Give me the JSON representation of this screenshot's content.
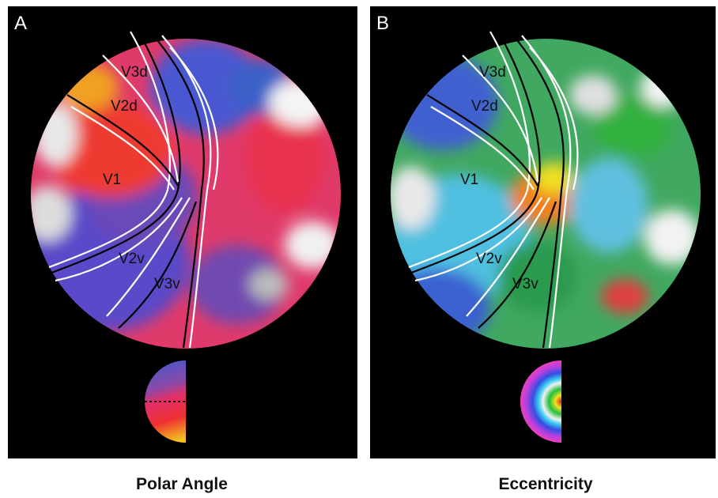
{
  "panels": [
    {
      "label": "A",
      "caption": "Polar Angle",
      "regions": [
        "V3d",
        "V2d",
        "V1",
        "V2v",
        "V3v"
      ]
    },
    {
      "label": "B",
      "caption": "Eccentricity",
      "regions": [
        "V3d",
        "V2d",
        "V1",
        "V2v",
        "V3v"
      ]
    }
  ]
}
